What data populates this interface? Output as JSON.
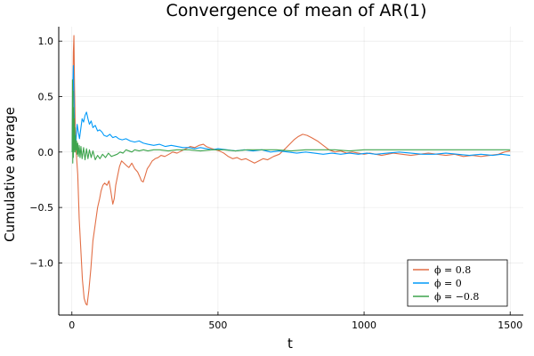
{
  "chart_data": {
    "type": "line",
    "title": "Convergence of mean of AR(1)",
    "xlabel": "t",
    "ylabel": "Cumulative average",
    "xlim": [
      -45,
      1545
    ],
    "ylim": [
      -1.47,
      1.13
    ],
    "xticks": [
      0,
      500,
      1000,
      1500
    ],
    "xtick_labels": [
      "0",
      "500",
      "1000",
      "1500"
    ],
    "yticks": [
      -1.0,
      -0.5,
      0.0,
      0.5,
      1.0
    ],
    "ytick_labels": [
      "−1.0",
      "−0.5",
      "0.0",
      "0.5",
      "1.0"
    ],
    "grid": true,
    "legend_position": "bottom-right",
    "series": [
      {
        "name": "ϕ = 0.8",
        "color": "#e26f46",
        "x": [
          1,
          3,
          5,
          7,
          9,
          11,
          13,
          16,
          20,
          25,
          30,
          36,
          42,
          48,
          52,
          58,
          65,
          72,
          80,
          88,
          95,
          100,
          106,
          112,
          120,
          127,
          133,
          140,
          145,
          150,
          156,
          163,
          170,
          178,
          186,
          195,
          205,
          215,
          225,
          232,
          238,
          244,
          250,
          258,
          266,
          275,
          285,
          295,
          305,
          318,
          332,
          345,
          360,
          375,
          390,
          405,
          420,
          435,
          450,
          460,
          470,
          480,
          492,
          505,
          520,
          535,
          550,
          565,
          580,
          595,
          610,
          625,
          640,
          655,
          670,
          690,
          710,
          730,
          745,
          760,
          775,
          790,
          805,
          820,
          840,
          860,
          880,
          900,
          920,
          940,
          960,
          980,
          1000,
          1020,
          1040,
          1060,
          1080,
          1100,
          1130,
          1160,
          1190,
          1220,
          1250,
          1280,
          1310,
          1340,
          1370,
          1400,
          1430,
          1460,
          1480,
          1500
        ],
        "y": [
          0.0,
          0.45,
          0.9,
          1.05,
          0.6,
          0.3,
          0.1,
          -0.05,
          -0.2,
          -0.6,
          -0.85,
          -1.15,
          -1.32,
          -1.37,
          -1.38,
          -1.25,
          -1.05,
          -0.8,
          -0.65,
          -0.5,
          -0.42,
          -0.35,
          -0.3,
          -0.28,
          -0.3,
          -0.26,
          -0.35,
          -0.47,
          -0.42,
          -0.3,
          -0.22,
          -0.13,
          -0.08,
          -0.1,
          -0.12,
          -0.14,
          -0.1,
          -0.15,
          -0.18,
          -0.22,
          -0.26,
          -0.27,
          -0.22,
          -0.15,
          -0.12,
          -0.08,
          -0.06,
          -0.05,
          -0.03,
          -0.04,
          -0.02,
          0.0,
          -0.01,
          0.01,
          0.03,
          0.05,
          0.04,
          0.06,
          0.07,
          0.05,
          0.04,
          0.03,
          0.02,
          0.01,
          -0.01,
          -0.04,
          -0.06,
          -0.05,
          -0.07,
          -0.06,
          -0.08,
          -0.1,
          -0.08,
          -0.06,
          -0.07,
          -0.04,
          -0.02,
          0.03,
          0.07,
          0.11,
          0.14,
          0.16,
          0.15,
          0.13,
          0.1,
          0.06,
          0.02,
          0.0,
          0.01,
          -0.01,
          0.0,
          -0.01,
          -0.02,
          -0.01,
          -0.02,
          -0.03,
          -0.02,
          -0.01,
          -0.02,
          -0.03,
          -0.02,
          -0.01,
          -0.02,
          -0.03,
          -0.02,
          -0.04,
          -0.03,
          -0.04,
          -0.03,
          -0.02,
          0.0,
          0.01
        ]
      },
      {
        "name": "ϕ = 0",
        "color": "#009af9",
        "x": [
          1,
          3,
          5,
          7,
          9,
          11,
          14,
          18,
          22,
          26,
          30,
          35,
          40,
          45,
          50,
          55,
          60,
          66,
          72,
          80,
          88,
          95,
          103,
          110,
          120,
          130,
          140,
          150,
          160,
          172,
          185,
          200,
          215,
          230,
          245,
          260,
          280,
          300,
          320,
          340,
          360,
          380,
          400,
          420,
          440,
          460,
          480,
          500,
          530,
          560,
          590,
          620,
          650,
          680,
          710,
          740,
          770,
          800,
          830,
          860,
          890,
          920,
          950,
          980,
          1010,
          1040,
          1080,
          1120,
          1160,
          1200,
          1240,
          1280,
          1320,
          1360,
          1400,
          1440,
          1470,
          1500
        ],
        "y": [
          0.0,
          0.6,
          0.78,
          0.5,
          0.2,
          0.05,
          0.1,
          0.25,
          0.18,
          0.12,
          0.2,
          0.3,
          0.27,
          0.33,
          0.36,
          0.3,
          0.25,
          0.28,
          0.22,
          0.24,
          0.19,
          0.2,
          0.18,
          0.15,
          0.14,
          0.16,
          0.13,
          0.14,
          0.12,
          0.11,
          0.12,
          0.1,
          0.09,
          0.1,
          0.08,
          0.07,
          0.06,
          0.07,
          0.05,
          0.06,
          0.05,
          0.04,
          0.04,
          0.03,
          0.04,
          0.03,
          0.02,
          0.03,
          0.02,
          0.01,
          0.02,
          0.01,
          0.02,
          0.0,
          0.01,
          0.0,
          -0.01,
          0.0,
          -0.01,
          -0.02,
          -0.01,
          -0.02,
          -0.01,
          -0.02,
          -0.01,
          -0.02,
          -0.01,
          0.0,
          -0.01,
          -0.02,
          -0.02,
          -0.01,
          -0.02,
          -0.03,
          -0.02,
          -0.03,
          -0.02,
          -0.03
        ]
      },
      {
        "name": "ϕ = −0.8",
        "color": "#3da44d",
        "x": [
          1,
          2,
          3,
          4,
          5,
          6,
          7,
          8,
          9,
          10,
          11,
          12,
          14,
          16,
          18,
          20,
          22,
          25,
          28,
          31,
          35,
          40,
          45,
          50,
          55,
          60,
          66,
          72,
          80,
          88,
          96,
          105,
          115,
          125,
          135,
          145,
          155,
          165,
          175,
          185,
          195,
          205,
          215,
          230,
          245,
          260,
          280,
          300,
          330,
          360,
          400,
          440,
          480,
          520,
          560,
          600,
          650,
          700,
          750,
          800,
          850,
          900,
          950,
          1000,
          1050,
          1100,
          1150,
          1200,
          1250,
          1300,
          1350,
          1400,
          1450,
          1480,
          1500
        ],
        "y": [
          0.0,
          0.65,
          -0.1,
          0.55,
          -0.05,
          0.4,
          0.0,
          0.3,
          0.02,
          0.22,
          0.0,
          0.15,
          0.02,
          0.1,
          -0.02,
          0.08,
          -0.04,
          0.06,
          -0.05,
          0.05,
          -0.06,
          0.04,
          -0.07,
          0.03,
          -0.06,
          0.02,
          -0.05,
          0.01,
          -0.07,
          -0.03,
          -0.06,
          -0.02,
          -0.05,
          -0.01,
          -0.04,
          -0.03,
          -0.02,
          0.0,
          -0.01,
          0.02,
          0.01,
          0.0,
          0.02,
          0.01,
          0.02,
          0.01,
          0.02,
          0.02,
          0.01,
          0.02,
          0.02,
          0.01,
          0.02,
          0.02,
          0.01,
          0.02,
          0.02,
          0.02,
          0.01,
          0.02,
          0.02,
          0.02,
          0.01,
          0.02,
          0.02,
          0.02,
          0.02,
          0.02,
          0.02,
          0.02,
          0.02,
          0.02,
          0.02,
          0.02,
          0.02
        ]
      }
    ]
  }
}
